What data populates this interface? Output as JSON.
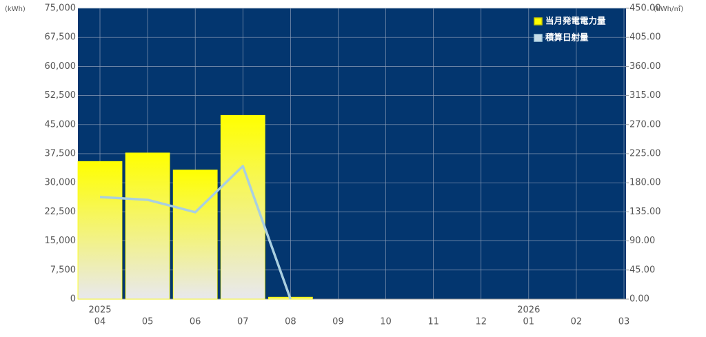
{
  "chart_data": {
    "type": "bar_line",
    "y_unit": "(kWh)",
    "y2_unit": "(kWh/㎡)",
    "categories": [
      "04",
      "05",
      "06",
      "07",
      "08",
      "09",
      "10",
      "11",
      "12",
      "01",
      "02",
      "03"
    ],
    "year_labels": [
      "2025",
      null,
      null,
      null,
      null,
      null,
      null,
      null,
      null,
      "2026",
      null,
      null
    ],
    "series": [
      {
        "name": "当月発電電力量",
        "type": "bar",
        "color": "#ffff00",
        "values": [
          35500,
          37700,
          33300,
          47400,
          500,
          null,
          null,
          null,
          null,
          null,
          null,
          null
        ]
      },
      {
        "name": "積算日射量",
        "type": "line",
        "axis": "y2",
        "color": "#a9cfe0",
        "values": [
          158,
          153.6,
          134.4,
          205.8,
          0,
          null,
          null,
          null,
          null,
          null,
          null,
          null
        ]
      }
    ],
    "ylim": [
      0,
      75000
    ],
    "yticks": [
      0,
      {
        "value": 7500,
        "label": "7,500"
      },
      {
        "value": 15000,
        "label": "15,000"
      },
      {
        "value": 22500,
        "label": "22,500"
      },
      {
        "value": 30000,
        "label": "30,000"
      },
      {
        "value": 37500,
        "label": "37,500"
      },
      {
        "value": 45000,
        "label": "45,000"
      },
      {
        "value": 52500,
        "label": "52,500"
      },
      {
        "value": 60000,
        "label": "60,000"
      },
      {
        "value": 67500,
        "label": "67,500"
      },
      {
        "value": 75000,
        "label": "75,000"
      }
    ],
    "y2lim": [
      0,
      450
    ],
    "y2ticks": [
      {
        "value": 0,
        "label": "0.00"
      },
      {
        "value": 45,
        "label": "45.00"
      },
      {
        "value": 90,
        "label": "90.00"
      },
      {
        "value": 135,
        "label": "135.00"
      },
      {
        "value": 180,
        "label": "180.00"
      },
      {
        "value": 225,
        "label": "225.00"
      },
      {
        "value": 270,
        "label": "270.00"
      },
      {
        "value": 315,
        "label": "315.00"
      },
      {
        "value": 360,
        "label": "360.00"
      },
      {
        "value": 405,
        "label": "405.00"
      },
      {
        "value": 450,
        "label": "450.00"
      }
    ],
    "grid": true,
    "legend": "top-right",
    "background": "#03366f"
  }
}
